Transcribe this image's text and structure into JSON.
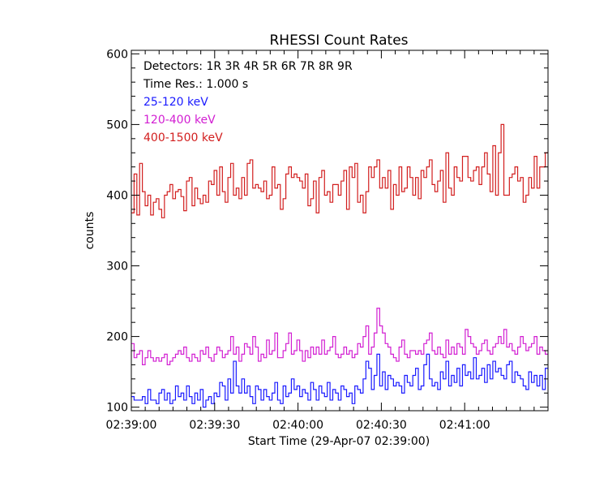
{
  "chart_data": {
    "type": "line",
    "title": "RHESSI Count Rates",
    "xlabel": "Start Time (29-Apr-07 02:39:00)",
    "ylabel": "counts",
    "xlim": [
      0,
      150
    ],
    "ylim": [
      95,
      605
    ],
    "x_ticks": [
      {
        "value": 0,
        "label": "02:39:00"
      },
      {
        "value": 30,
        "label": "02:39:30"
      },
      {
        "value": 60,
        "label": "02:40:00"
      },
      {
        "value": 90,
        "label": "02:40:30"
      },
      {
        "value": 120,
        "label": "02:41:00"
      }
    ],
    "y_ticks": [
      100,
      200,
      300,
      400,
      500,
      600
    ],
    "grid": false,
    "legend": {
      "placement": "top-left",
      "lines": [
        {
          "text": "Detectors:  1R 3R 4R 5R 6R 7R 8R 9R",
          "color": "#000000"
        },
        {
          "text": "Time Res.: 1.000 s",
          "color": "#000000"
        },
        {
          "text": "25-120 keV",
          "color": "#1a1aff"
        },
        {
          "text": "120-400 keV",
          "color": "#d21ed2"
        },
        {
          "text": "400-1500 keV",
          "color": "#d21e1e"
        }
      ]
    },
    "time_resolution_s": 1,
    "series": [
      {
        "name": "400-1500 keV",
        "color": "#d21e1e",
        "values": [
          375,
          430,
          372,
          445,
          405,
          385,
          400,
          372,
          390,
          395,
          380,
          368,
          400,
          405,
          415,
          395,
          405,
          408,
          398,
          378,
          420,
          425,
          385,
          410,
          395,
          388,
          400,
          390,
          420,
          415,
          435,
          400,
          440,
          405,
          390,
          425,
          445,
          400,
          410,
          395,
          425,
          400,
          445,
          450,
          410,
          415,
          410,
          405,
          420,
          395,
          400,
          440,
          410,
          415,
          380,
          395,
          430,
          440,
          425,
          430,
          425,
          420,
          410,
          430,
          385,
          395,
          420,
          375,
          425,
          435,
          400,
          405,
          390,
          415,
          415,
          400,
          420,
          435,
          380,
          440,
          425,
          445,
          390,
          400,
          375,
          405,
          440,
          425,
          440,
          450,
          410,
          425,
          410,
          435,
          380,
          415,
          400,
          440,
          405,
          410,
          440,
          425,
          400,
          425,
          395,
          435,
          425,
          440,
          450,
          415,
          405,
          420,
          435,
          390,
          460,
          410,
          400,
          440,
          425,
          420,
          455,
          455,
          425,
          420,
          435,
          440,
          415,
          440,
          460,
          430,
          405,
          470,
          400,
          460,
          500,
          400,
          400,
          425,
          430,
          440,
          420,
          425,
          390,
          400,
          425,
          410,
          455,
          410,
          440,
          440,
          460
        ]
      },
      {
        "name": "120-400 keV",
        "color": "#d21ed2",
        "values": [
          190,
          170,
          175,
          180,
          160,
          170,
          180,
          170,
          165,
          170,
          165,
          170,
          175,
          160,
          165,
          170,
          175,
          180,
          175,
          185,
          170,
          165,
          175,
          170,
          165,
          180,
          175,
          185,
          170,
          165,
          175,
          185,
          180,
          170,
          175,
          180,
          200,
          175,
          185,
          165,
          175,
          190,
          185,
          175,
          200,
          185,
          165,
          175,
          170,
          195,
          175,
          180,
          205,
          170,
          170,
          180,
          190,
          205,
          175,
          180,
          195,
          180,
          165,
          180,
          170,
          185,
          175,
          185,
          175,
          195,
          175,
          180,
          185,
          200,
          175,
          170,
          175,
          185,
          175,
          180,
          170,
          175,
          190,
          185,
          200,
          215,
          175,
          185,
          205,
          240,
          215,
          205,
          190,
          185,
          175,
          170,
          165,
          185,
          195,
          175,
          170,
          180,
          180,
          175,
          180,
          175,
          190,
          195,
          205,
          180,
          175,
          185,
          175,
          170,
          195,
          175,
          185,
          175,
          190,
          185,
          175,
          210,
          200,
          190,
          185,
          175,
          180,
          190,
          195,
          180,
          175,
          185,
          190,
          200,
          190,
          210,
          185,
          190,
          180,
          175,
          185,
          200,
          190,
          180,
          185,
          190,
          200,
          175,
          185,
          180,
          175
        ]
      },
      {
        "name": "25-120 keV",
        "color": "#1a1aff",
        "values": [
          115,
          110,
          110,
          110,
          115,
          105,
          125,
          110,
          110,
          105,
          120,
          125,
          110,
          120,
          105,
          110,
          130,
          115,
          120,
          110,
          130,
          115,
          105,
          120,
          110,
          125,
          100,
          110,
          115,
          105,
          120,
          115,
          135,
          130,
          110,
          140,
          120,
          165,
          130,
          120,
          140,
          120,
          130,
          115,
          105,
          130,
          125,
          110,
          125,
          115,
          110,
          120,
          135,
          110,
          105,
          130,
          115,
          120,
          140,
          125,
          130,
          115,
          125,
          120,
          110,
          135,
          125,
          110,
          130,
          120,
          115,
          135,
          110,
          125,
          120,
          110,
          130,
          125,
          115,
          120,
          105,
          130,
          125,
          120,
          140,
          165,
          155,
          125,
          145,
          175,
          130,
          150,
          125,
          145,
          140,
          130,
          135,
          130,
          120,
          145,
          135,
          130,
          145,
          155,
          125,
          130,
          160,
          175,
          140,
          130,
          135,
          125,
          150,
          140,
          165,
          130,
          145,
          135,
          155,
          130,
          160,
          145,
          150,
          140,
          170,
          140,
          145,
          155,
          135,
          160,
          140,
          165,
          150,
          155,
          145,
          140,
          160,
          165,
          135,
          150,
          145,
          140,
          130,
          125,
          150,
          135,
          145,
          130,
          145,
          125,
          155
        ]
      }
    ]
  }
}
